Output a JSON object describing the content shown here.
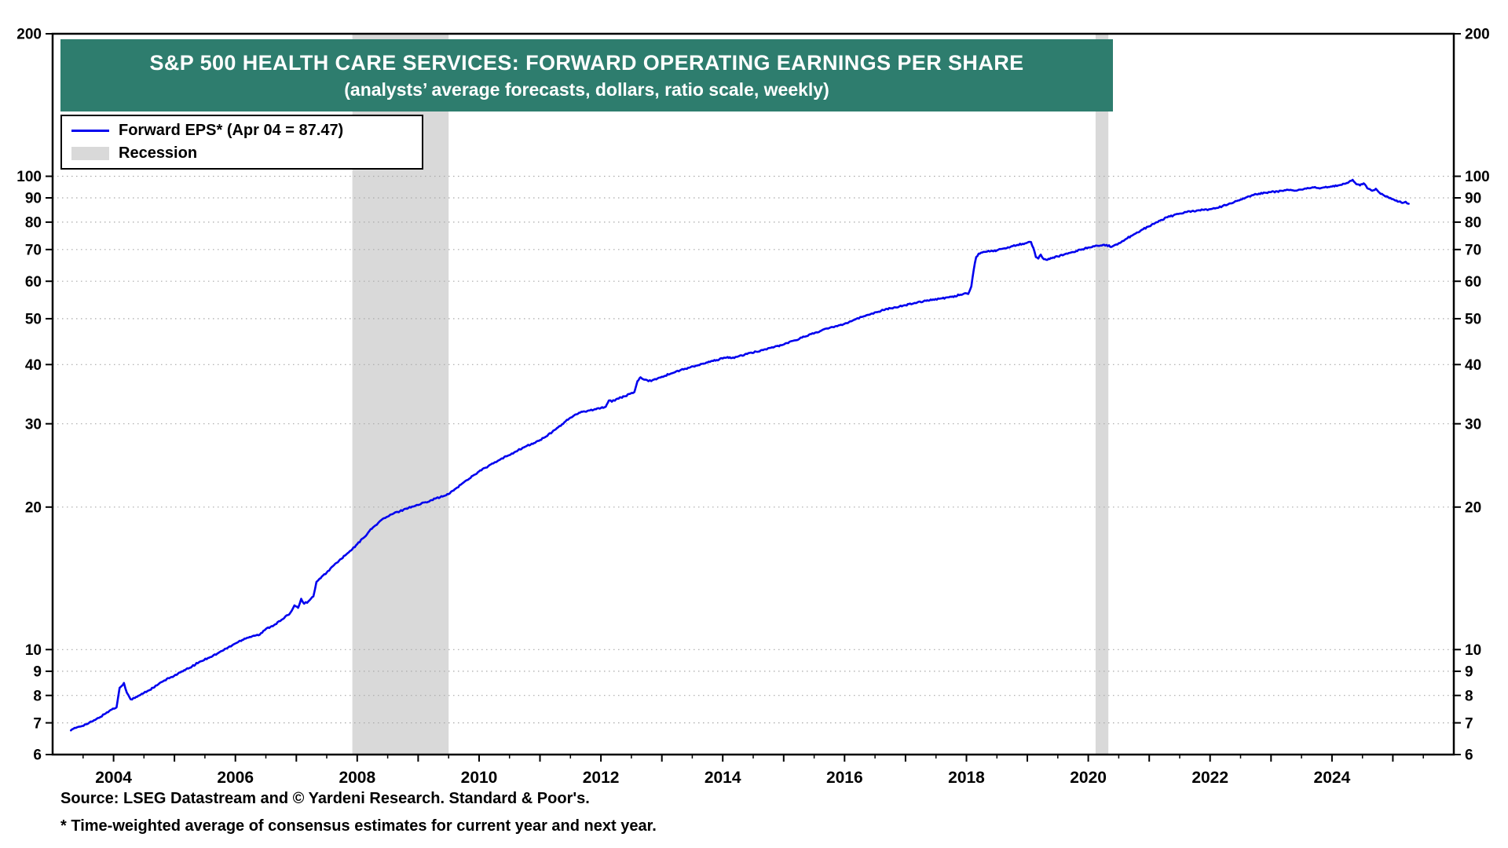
{
  "title": {
    "line1": "S&P 500 HEALTH CARE SERVICES: FORWARD OPERATING EARNINGS PER SHARE",
    "line2": "(analysts’ average forecasts, dollars, ratio scale, weekly)"
  },
  "legend": {
    "series_label": "Forward EPS* (Apr 04 = 87.47)",
    "recession_label": "Recession"
  },
  "footer": {
    "source": "Source: LSEG Datastream and © Yardeni Research. Standard & Poor's.",
    "footnote": "* Time-weighted average of consensus estimates for current year and next year."
  },
  "colors": {
    "line": "#0000EE",
    "recession": "#D9D9D9",
    "banner": "#2E7D6E",
    "grid": "#AAAAAA",
    "frame": "#000000"
  },
  "chart_data": {
    "type": "line",
    "title": "S&P 500 HEALTH CARE SERVICES: FORWARD OPERATING EARNINGS PER SHARE",
    "subtitle": "(analysts’ average forecasts, dollars, ratio scale, weekly)",
    "y_scale": "log",
    "ylim": [
      6,
      200
    ],
    "xlim": [
      2003,
      2026
    ],
    "y_ticks": [
      6,
      7,
      8,
      9,
      10,
      20,
      30,
      40,
      50,
      60,
      70,
      80,
      90,
      100,
      200
    ],
    "x_tick_labels": [
      2004,
      2006,
      2008,
      2010,
      2012,
      2014,
      2016,
      2018,
      2020,
      2022,
      2024
    ],
    "grid": "dotted-horizontal",
    "legend_position": "top-left",
    "latest": {
      "date": "Apr 04",
      "value": 87.47
    },
    "recessions": [
      [
        2007.92,
        2009.5
      ],
      [
        2020.12,
        2020.33
      ]
    ],
    "series": [
      {
        "name": "Forward EPS",
        "points": [
          [
            2003.3,
            6.75
          ],
          [
            2003.4,
            6.85
          ],
          [
            2003.55,
            6.95
          ],
          [
            2003.7,
            7.1
          ],
          [
            2003.85,
            7.3
          ],
          [
            2003.95,
            7.45
          ],
          [
            2004.05,
            7.55
          ],
          [
            2004.1,
            8.3
          ],
          [
            2004.17,
            8.5
          ],
          [
            2004.22,
            8.1
          ],
          [
            2004.28,
            7.85
          ],
          [
            2004.35,
            7.9
          ],
          [
            2004.5,
            8.1
          ],
          [
            2004.65,
            8.3
          ],
          [
            2004.8,
            8.55
          ],
          [
            2004.95,
            8.75
          ],
          [
            2005.1,
            8.95
          ],
          [
            2005.25,
            9.15
          ],
          [
            2005.4,
            9.4
          ],
          [
            2005.55,
            9.6
          ],
          [
            2005.7,
            9.8
          ],
          [
            2005.85,
            10.05
          ],
          [
            2006.0,
            10.3
          ],
          [
            2006.15,
            10.55
          ],
          [
            2006.3,
            10.7
          ],
          [
            2006.4,
            10.75
          ],
          [
            2006.5,
            11.05
          ],
          [
            2006.65,
            11.3
          ],
          [
            2006.8,
            11.65
          ],
          [
            2006.9,
            11.95
          ],
          [
            2006.97,
            12.4
          ],
          [
            2007.03,
            12.25
          ],
          [
            2007.08,
            12.8
          ],
          [
            2007.13,
            12.5
          ],
          [
            2007.2,
            12.65
          ],
          [
            2007.28,
            12.95
          ],
          [
            2007.33,
            13.9
          ],
          [
            2007.4,
            14.15
          ],
          [
            2007.5,
            14.55
          ],
          [
            2007.6,
            15.0
          ],
          [
            2007.7,
            15.4
          ],
          [
            2007.8,
            15.8
          ],
          [
            2007.9,
            16.2
          ],
          [
            2008.0,
            16.7
          ],
          [
            2008.1,
            17.2
          ],
          [
            2008.2,
            17.8
          ],
          [
            2008.3,
            18.3
          ],
          [
            2008.4,
            18.8
          ],
          [
            2008.5,
            19.1
          ],
          [
            2008.6,
            19.4
          ],
          [
            2008.7,
            19.6
          ],
          [
            2008.8,
            19.85
          ],
          [
            2008.9,
            20.05
          ],
          [
            2009.0,
            20.2
          ],
          [
            2009.1,
            20.45
          ],
          [
            2009.2,
            20.65
          ],
          [
            2009.3,
            20.9
          ],
          [
            2009.4,
            21.05
          ],
          [
            2009.5,
            21.3
          ],
          [
            2009.6,
            21.8
          ],
          [
            2009.7,
            22.3
          ],
          [
            2009.8,
            22.8
          ],
          [
            2009.9,
            23.3
          ],
          [
            2010.0,
            23.8
          ],
          [
            2010.15,
            24.4
          ],
          [
            2010.3,
            25.0
          ],
          [
            2010.45,
            25.6
          ],
          [
            2010.6,
            26.2
          ],
          [
            2010.75,
            26.8
          ],
          [
            2010.9,
            27.3
          ],
          [
            2011.0,
            27.7
          ],
          [
            2011.1,
            28.2
          ],
          [
            2011.2,
            28.8
          ],
          [
            2011.3,
            29.5
          ],
          [
            2011.4,
            30.2
          ],
          [
            2011.5,
            30.9
          ],
          [
            2011.6,
            31.4
          ],
          [
            2011.7,
            31.8
          ],
          [
            2011.8,
            32.0
          ],
          [
            2011.9,
            32.2
          ],
          [
            2012.0,
            32.4
          ],
          [
            2012.08,
            32.6
          ],
          [
            2012.13,
            33.6
          ],
          [
            2012.18,
            33.4
          ],
          [
            2012.25,
            33.8
          ],
          [
            2012.33,
            34.1
          ],
          [
            2012.4,
            34.3
          ],
          [
            2012.48,
            34.7
          ],
          [
            2012.55,
            35.0
          ],
          [
            2012.6,
            36.9
          ],
          [
            2012.65,
            37.6
          ],
          [
            2012.7,
            37.2
          ],
          [
            2012.78,
            36.9
          ],
          [
            2012.85,
            37.1
          ],
          [
            2012.93,
            37.4
          ],
          [
            2013.0,
            37.7
          ],
          [
            2013.15,
            38.3
          ],
          [
            2013.3,
            38.9
          ],
          [
            2013.45,
            39.4
          ],
          [
            2013.6,
            39.9
          ],
          [
            2013.75,
            40.4
          ],
          [
            2013.9,
            40.9
          ],
          [
            2014.0,
            41.2
          ],
          [
            2014.08,
            41.5
          ],
          [
            2014.15,
            41.3
          ],
          [
            2014.25,
            41.6
          ],
          [
            2014.4,
            42.1
          ],
          [
            2014.55,
            42.6
          ],
          [
            2014.7,
            43.1
          ],
          [
            2014.85,
            43.6
          ],
          [
            2015.0,
            44.1
          ],
          [
            2015.15,
            44.9
          ],
          [
            2015.3,
            45.6
          ],
          [
            2015.45,
            46.4
          ],
          [
            2015.6,
            47.1
          ],
          [
            2015.75,
            47.8
          ],
          [
            2015.9,
            48.4
          ],
          [
            2016.0,
            48.8
          ],
          [
            2016.15,
            49.7
          ],
          [
            2016.3,
            50.5
          ],
          [
            2016.45,
            51.3
          ],
          [
            2016.6,
            52.0
          ],
          [
            2016.75,
            52.6
          ],
          [
            2016.9,
            53.1
          ],
          [
            2017.0,
            53.4
          ],
          [
            2017.15,
            54.0
          ],
          [
            2017.3,
            54.5
          ],
          [
            2017.45,
            54.9
          ],
          [
            2017.6,
            55.2
          ],
          [
            2017.75,
            55.6
          ],
          [
            2017.9,
            56.2
          ],
          [
            2017.97,
            56.6
          ],
          [
            2018.03,
            56.4
          ],
          [
            2018.08,
            58.5
          ],
          [
            2018.12,
            63.5
          ],
          [
            2018.16,
            67.5
          ],
          [
            2018.2,
            68.6
          ],
          [
            2018.28,
            69.2
          ],
          [
            2018.36,
            69.6
          ],
          [
            2018.44,
            69.4
          ],
          [
            2018.52,
            69.9
          ],
          [
            2018.6,
            70.3
          ],
          [
            2018.68,
            70.8
          ],
          [
            2018.76,
            71.2
          ],
          [
            2018.84,
            71.6
          ],
          [
            2018.92,
            72.0
          ],
          [
            2019.0,
            72.4
          ],
          [
            2019.06,
            72.6
          ],
          [
            2019.1,
            70.5
          ],
          [
            2019.14,
            67.5
          ],
          [
            2019.18,
            67.0
          ],
          [
            2019.22,
            68.3
          ],
          [
            2019.27,
            66.8
          ],
          [
            2019.33,
            66.6
          ],
          [
            2019.4,
            67.1
          ],
          [
            2019.5,
            67.7
          ],
          [
            2019.6,
            68.3
          ],
          [
            2019.7,
            68.9
          ],
          [
            2019.8,
            69.5
          ],
          [
            2019.9,
            70.1
          ],
          [
            2020.0,
            70.7
          ],
          [
            2020.1,
            71.1
          ],
          [
            2020.2,
            71.4
          ],
          [
            2020.3,
            71.6
          ],
          [
            2020.38,
            70.9
          ],
          [
            2020.44,
            71.6
          ],
          [
            2020.5,
            72.2
          ],
          [
            2020.6,
            73.4
          ],
          [
            2020.7,
            74.8
          ],
          [
            2020.8,
            76.1
          ],
          [
            2020.9,
            77.3
          ],
          [
            2021.0,
            78.4
          ],
          [
            2021.1,
            79.7
          ],
          [
            2021.2,
            80.9
          ],
          [
            2021.3,
            81.9
          ],
          [
            2021.4,
            82.7
          ],
          [
            2021.5,
            83.4
          ],
          [
            2021.6,
            84.0
          ],
          [
            2021.7,
            84.4
          ],
          [
            2021.8,
            84.7
          ],
          [
            2021.9,
            84.9
          ],
          [
            2022.0,
            85.2
          ],
          [
            2022.1,
            85.7
          ],
          [
            2022.2,
            86.4
          ],
          [
            2022.3,
            87.3
          ],
          [
            2022.4,
            88.3
          ],
          [
            2022.5,
            89.3
          ],
          [
            2022.6,
            90.3
          ],
          [
            2022.7,
            91.2
          ],
          [
            2022.8,
            91.9
          ],
          [
            2022.9,
            92.3
          ],
          [
            2023.0,
            92.6
          ],
          [
            2023.1,
            92.9
          ],
          [
            2023.2,
            93.1
          ],
          [
            2023.3,
            93.5
          ],
          [
            2023.38,
            93.2
          ],
          [
            2023.46,
            93.7
          ],
          [
            2023.54,
            94.0
          ],
          [
            2023.62,
            94.3
          ],
          [
            2023.7,
            94.7
          ],
          [
            2023.78,
            94.4
          ],
          [
            2023.86,
            94.7
          ],
          [
            2023.94,
            94.9
          ],
          [
            2024.0,
            95.1
          ],
          [
            2024.1,
            95.6
          ],
          [
            2024.2,
            96.4
          ],
          [
            2024.28,
            97.3
          ],
          [
            2024.34,
            98.3
          ],
          [
            2024.4,
            96.2
          ],
          [
            2024.46,
            95.6
          ],
          [
            2024.52,
            96.6
          ],
          [
            2024.58,
            94.3
          ],
          [
            2024.66,
            93.2
          ],
          [
            2024.72,
            94.1
          ],
          [
            2024.78,
            92.3
          ],
          [
            2024.86,
            91.0
          ],
          [
            2024.94,
            89.9
          ],
          [
            2025.02,
            89.2
          ],
          [
            2025.1,
            88.4
          ],
          [
            2025.16,
            87.8
          ],
          [
            2025.21,
            88.3
          ],
          [
            2025.26,
            87.47
          ]
        ]
      }
    ]
  }
}
